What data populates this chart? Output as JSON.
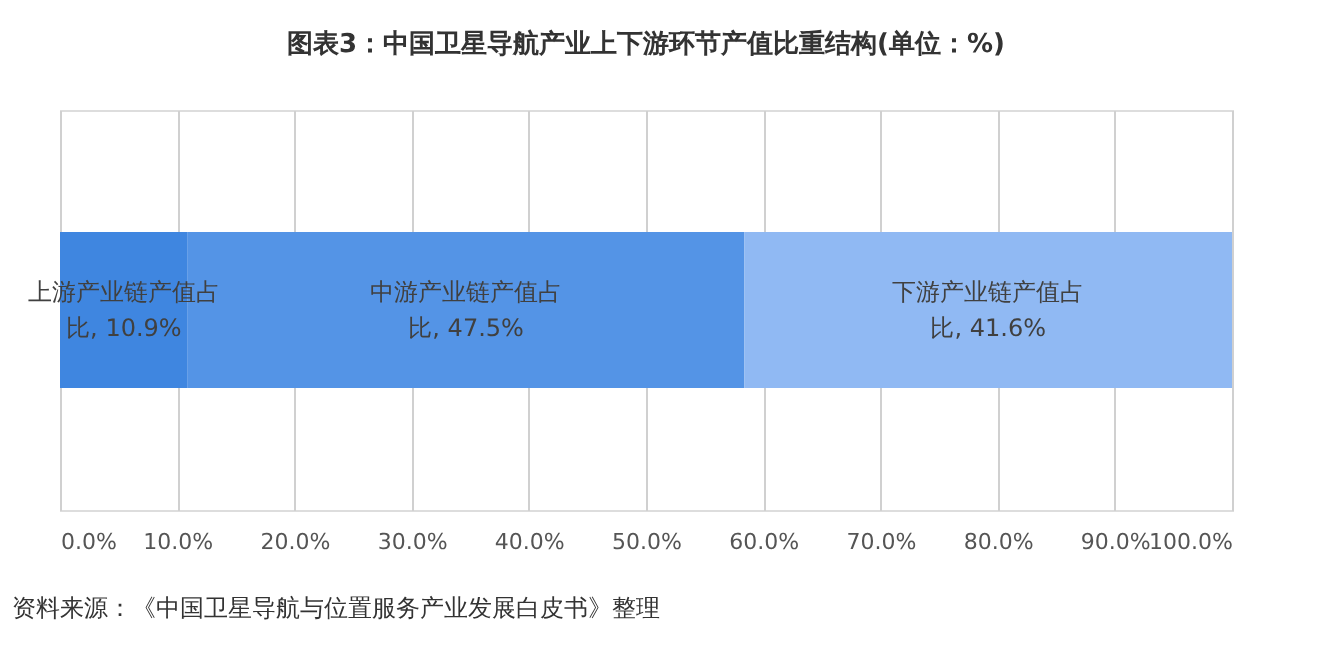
{
  "chart_data": {
    "type": "bar",
    "orientation": "horizontal",
    "stacked": true,
    "title": "图表3：中国卫星导航产业上下游环节产值比重结构(单位：%)",
    "categories": [
      null
    ],
    "series": [
      {
        "color": "#3f86e0",
        "values": [
          10.9
        ],
        "value_labels": [
          "上游产业链产值占比, 10.9%"
        ]
      },
      {
        "color": "#5494e6",
        "values": [
          47.5
        ],
        "value_labels": [
          "中游产业链产值占比, 47.5%"
        ]
      },
      {
        "color": "#90b9f3",
        "values": [
          41.6
        ],
        "value_labels": [
          "下游产业链产值占比, 41.6%"
        ]
      }
    ],
    "xlim": [
      0,
      100
    ],
    "xticks": [
      {
        "value": 0,
        "label": "0.0%"
      },
      {
        "value": 10,
        "label": "10.0%"
      },
      {
        "value": 20,
        "label": "20.0%"
      },
      {
        "value": 30,
        "label": "30.0%"
      },
      {
        "value": 40,
        "label": "40.0%"
      },
      {
        "value": 50,
        "label": "50.0%"
      },
      {
        "value": 60,
        "label": "60.0%"
      },
      {
        "value": 70,
        "label": "70.0%"
      },
      {
        "value": 80,
        "label": "80.0%"
      },
      {
        "value": 90,
        "label": "90.0%"
      },
      {
        "value": 100,
        "label": "100.0%"
      }
    ],
    "grid": "x",
    "tick_labels": "x",
    "annotations": [
      "资料来源：《中国卫星导航与位置服务产业发展白皮书》整理"
    ]
  }
}
